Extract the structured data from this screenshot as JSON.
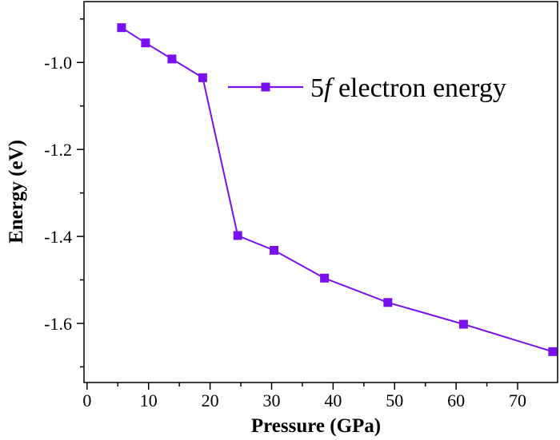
{
  "chart_data": {
    "type": "line",
    "xlabel": "Pressure (GPa)",
    "ylabel": "Energy (eV)",
    "xlim": [
      -0.5,
      76.5
    ],
    "ylim": [
      -1.736,
      -0.86
    ],
    "xticks": [
      0,
      10,
      20,
      30,
      40,
      50,
      60,
      70
    ],
    "yticks": [
      -1.0,
      -1.2,
      -1.4,
      -1.6
    ],
    "xtick_labels": [
      "0",
      "10",
      "20",
      "30",
      "40",
      "50",
      "60",
      "70"
    ],
    "ytick_labels": [
      "-1.0",
      "-1.2",
      "-1.4",
      "-1.6"
    ],
    "grid": false,
    "legend_position": "top-right",
    "series": [
      {
        "name": "5f electron energy",
        "name_prefix": "5",
        "name_italic": "f",
        "name_suffix": " electron energy",
        "color": "#7a10f0",
        "marker": "square",
        "x": [
          5.6,
          9.5,
          13.8,
          18.8,
          24.5,
          30.4,
          38.6,
          48.9,
          61.2,
          75.7
        ],
        "y": [
          -0.92,
          -0.955,
          -0.992,
          -1.035,
          -1.398,
          -1.432,
          -1.496,
          -1.552,
          -1.602,
          -1.665
        ]
      }
    ]
  }
}
